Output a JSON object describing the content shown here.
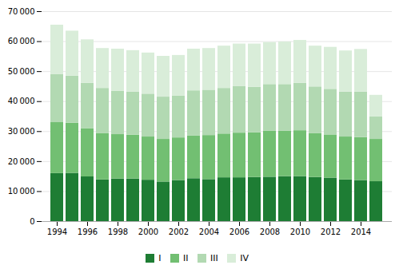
{
  "chart_data": {
    "type": "bar",
    "stacked": true,
    "grid": true,
    "legend": "bottom",
    "categories": [
      "1994",
      null,
      "1996",
      null,
      "1998",
      null,
      "2000",
      null,
      "2002",
      null,
      "2004",
      null,
      "2006",
      null,
      "2008",
      null,
      "2010",
      null,
      "2012",
      null,
      "2014",
      null
    ],
    "series": [
      {
        "name": "I",
        "color": "#1e7d34",
        "values": [
          16000,
          16100,
          14900,
          13900,
          14200,
          14200,
          13800,
          13200,
          13700,
          14300,
          14000,
          14600,
          14600,
          14700,
          14800,
          15000,
          15000,
          14700,
          14500,
          13900,
          13700,
          13300
        ]
      },
      {
        "name": "II",
        "color": "#72bf72",
        "values": [
          17000,
          16700,
          16100,
          15500,
          14800,
          14600,
          14400,
          14200,
          14200,
          14300,
          14700,
          14600,
          14900,
          14900,
          15300,
          15100,
          15300,
          14700,
          14400,
          14300,
          14300,
          14100
        ]
      },
      {
        "name": "III",
        "color": "#b2d9b2",
        "values": [
          16000,
          15700,
          15100,
          15000,
          14500,
          14400,
          14300,
          14100,
          14000,
          15000,
          15100,
          15200,
          15500,
          15200,
          15600,
          15600,
          15800,
          15500,
          15200,
          15000,
          15200,
          7500
        ]
      },
      {
        "name": "IV",
        "color": "#d9edd9",
        "values": [
          16500,
          15000,
          14500,
          13300,
          14000,
          13800,
          13700,
          13600,
          13500,
          13900,
          13900,
          14100,
          14200,
          14400,
          14000,
          14200,
          14300,
          13600,
          14000,
          13700,
          14200,
          7200
        ]
      }
    ],
    "ylim": [
      0,
      70000
    ],
    "yticks": [
      0,
      {
        "value": 10000,
        "label": "10 000"
      },
      {
        "value": 20000,
        "label": "20 000"
      },
      {
        "value": 30000,
        "label": "30 000"
      },
      {
        "value": 40000,
        "label": "40 000"
      },
      {
        "value": 50000,
        "label": "50 000"
      },
      {
        "value": 60000,
        "label": "60 000"
      },
      {
        "value": 70000,
        "label": "70 000"
      }
    ]
  }
}
